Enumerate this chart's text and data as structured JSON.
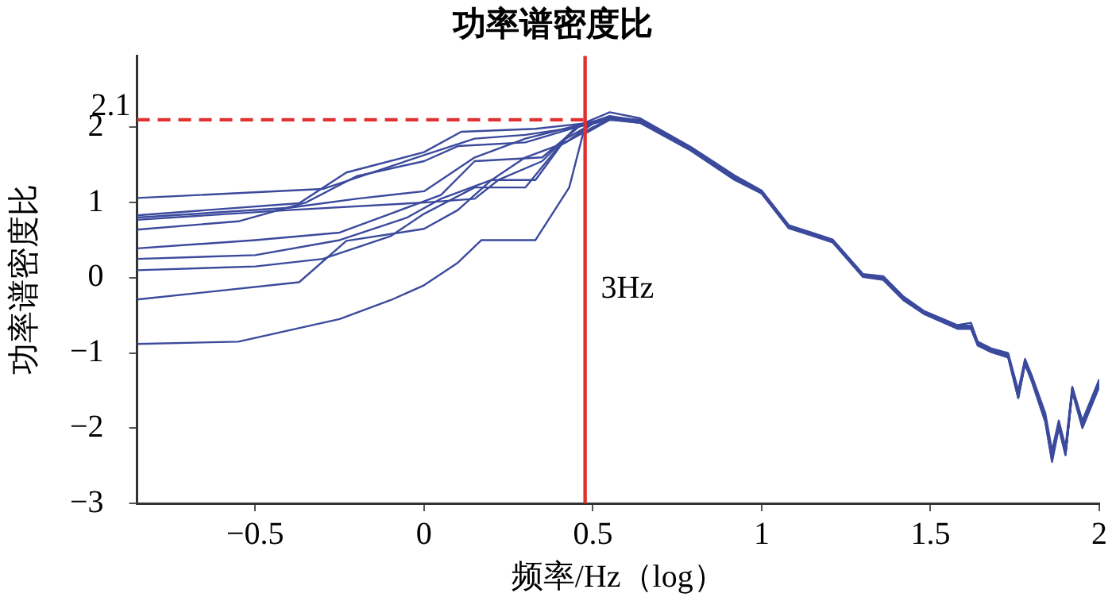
{
  "chart_data": {
    "type": "line",
    "title": "功率谱密度比",
    "xlabel": "频率/Hz（log）",
    "ylabel": "功率谱密度比",
    "xlim": [
      -0.85,
      2
    ],
    "xticks": [
      -0.5,
      0,
      0.5,
      1,
      1.5,
      2
    ],
    "ylim": [
      -3,
      2.95
    ],
    "yticks": [
      -3,
      -2,
      -1,
      0,
      1,
      2
    ],
    "grid": false,
    "legend": false,
    "marker": "none",
    "line_style": "solid",
    "series": [
      {
        "color": "#3b4a9c",
        "x": [
          -0.85,
          -0.3,
          0,
          0.15,
          0.3,
          0.45,
          0.55,
          0.64,
          0.79,
          0.92,
          1.0,
          1.08,
          1.21,
          1.3,
          1.36,
          1.42,
          1.48,
          1.58,
          1.62,
          1.64,
          1.68,
          1.73,
          1.76,
          1.78,
          1.8,
          1.84,
          1.86,
          1.88,
          1.9,
          1.92,
          1.95,
          2.0
        ],
        "values": [
          1.06,
          1.18,
          1.63,
          1.85,
          1.9,
          2.0,
          2.15,
          2.09,
          1.71,
          1.33,
          1.14,
          0.68,
          0.49,
          0.03,
          0.0,
          -0.27,
          -0.46,
          -0.65,
          -0.65,
          -0.88,
          -0.96,
          -1.03,
          -1.57,
          -1.11,
          -1.34,
          -1.87,
          -2.41,
          -1.95,
          -2.33,
          -1.49,
          -1.95,
          -1.41
        ]
      },
      {
        "color": "#3b4a9c",
        "x": [
          -0.85,
          -0.37,
          -0.23,
          0,
          0.11,
          0.33,
          0.47,
          0.55,
          0.64,
          0.79,
          0.92,
          1.0,
          1.08,
          1.21,
          1.3,
          1.36,
          1.42,
          1.48,
          1.58,
          1.62,
          1.64,
          1.68,
          1.73,
          1.76,
          1.78,
          1.8,
          1.84,
          1.86,
          1.88,
          1.9,
          1.92,
          1.95,
          2.0
        ],
        "values": [
          0.83,
          0.99,
          1.4,
          1.67,
          1.94,
          1.98,
          2.05,
          2.2,
          2.12,
          1.74,
          1.36,
          1.16,
          0.7,
          0.51,
          0.05,
          0.02,
          -0.25,
          -0.44,
          -0.63,
          -0.6,
          -0.85,
          -0.94,
          -1.0,
          -1.5,
          -1.08,
          -1.3,
          -1.8,
          -2.3,
          -1.9,
          -2.25,
          -1.45,
          -1.9,
          -1.35
        ]
      },
      {
        "color": "#3b4a9c",
        "x": [
          -0.85,
          -0.4,
          0,
          0.15,
          0.22,
          0.35,
          0.45,
          0.55,
          0.64,
          0.79,
          0.92,
          1.0,
          1.08,
          1.21,
          1.3,
          1.36,
          1.42,
          1.48,
          1.58,
          1.62,
          1.64,
          1.68,
          1.73,
          1.76,
          1.78,
          1.8,
          1.84,
          1.86,
          1.88,
          1.9,
          1.92,
          1.95,
          2.0
        ],
        "values": [
          0.77,
          0.9,
          1.0,
          1.05,
          1.3,
          1.55,
          2.0,
          2.1,
          2.06,
          1.69,
          1.3,
          1.12,
          0.66,
          0.47,
          0.01,
          -0.03,
          -0.3,
          -0.48,
          -0.68,
          -0.68,
          -0.9,
          -0.99,
          -1.06,
          -1.6,
          -1.15,
          -1.38,
          -1.92,
          -2.45,
          -2.0,
          -2.36,
          -1.52,
          -2.0,
          -1.45
        ]
      },
      {
        "color": "#3b4a9c",
        "x": [
          -0.85,
          -0.55,
          -0.35,
          -0.2,
          0,
          0.1,
          0.3,
          0.45,
          0.55,
          0.64,
          0.79,
          0.92,
          1.0,
          1.08,
          1.21,
          1.3,
          1.36,
          1.42,
          1.48,
          1.58,
          1.62,
          1.64,
          1.68,
          1.73,
          1.76,
          1.78,
          1.8,
          1.84,
          1.86,
          1.88,
          1.9,
          1.92,
          1.95,
          2.0
        ],
        "values": [
          0.64,
          0.75,
          1.0,
          1.35,
          1.55,
          1.75,
          1.8,
          2.0,
          2.13,
          2.1,
          1.72,
          1.34,
          1.15,
          0.69,
          0.5,
          0.04,
          0.01,
          -0.26,
          -0.45,
          -0.64,
          -0.64,
          -0.87,
          -0.95,
          -1.02,
          -1.55,
          -1.1,
          -1.33,
          -1.85,
          -2.38,
          -1.93,
          -2.3,
          -1.47,
          -1.93,
          -1.4
        ]
      },
      {
        "color": "#3b4a9c",
        "x": [
          -0.85,
          -0.5,
          -0.25,
          -0.1,
          0.05,
          0.15,
          0.35,
          0.47,
          0.55,
          0.64,
          0.79,
          0.92,
          1.0,
          1.08,
          1.21,
          1.3,
          1.36,
          1.42,
          1.48,
          1.58,
          1.62,
          1.64,
          1.68,
          1.73,
          1.76,
          1.78,
          1.8,
          1.84,
          1.86,
          1.88,
          1.9,
          1.92,
          1.95,
          2.0
        ],
        "values": [
          0.39,
          0.5,
          0.6,
          0.85,
          1.1,
          1.55,
          1.6,
          2.05,
          2.12,
          2.07,
          1.7,
          1.32,
          1.13,
          0.67,
          0.48,
          0.02,
          -0.01,
          -0.28,
          -0.47,
          -0.66,
          -0.66,
          -0.89,
          -0.97,
          -1.04,
          -1.58,
          -1.12,
          -1.35,
          -1.88,
          -2.4,
          -1.96,
          -2.32,
          -1.5,
          -1.96,
          -1.42
        ]
      },
      {
        "color": "#3b4a9c",
        "x": [
          -0.85,
          -0.5,
          -0.25,
          -0.05,
          0.05,
          0.2,
          0.3,
          0.42,
          0.5,
          0.55,
          0.64,
          0.79,
          0.92,
          1.0,
          1.08,
          1.21,
          1.3,
          1.36,
          1.42,
          1.48,
          1.58,
          1.62,
          1.64,
          1.68,
          1.73,
          1.76,
          1.78,
          1.8,
          1.84,
          1.86,
          1.88,
          1.9,
          1.92,
          1.95,
          2.0
        ],
        "values": [
          0.25,
          0.3,
          0.5,
          0.8,
          1.05,
          1.3,
          1.6,
          1.8,
          2.05,
          2.14,
          2.08,
          1.71,
          1.33,
          1.14,
          0.68,
          0.49,
          0.03,
          0.0,
          -0.27,
          -0.46,
          -0.65,
          -0.65,
          -0.88,
          -0.96,
          -1.03,
          -1.57,
          -1.11,
          -1.34,
          -1.87,
          -2.41,
          -1.95,
          -2.33,
          -1.49,
          -1.95,
          -1.41
        ]
      },
      {
        "color": "#3b4a9c",
        "x": [
          -0.85,
          -0.5,
          -0.3,
          -0.1,
          0,
          0.15,
          0.3,
          0.4,
          0.5,
          0.55,
          0.64,
          0.79,
          0.92,
          1.0,
          1.08,
          1.21,
          1.3,
          1.36,
          1.42,
          1.48,
          1.58,
          1.62,
          1.64,
          1.68,
          1.73,
          1.76,
          1.78,
          1.8,
          1.84,
          1.86,
          1.88,
          1.9,
          1.92,
          1.95,
          2.0
        ],
        "values": [
          0.1,
          0.15,
          0.25,
          0.55,
          0.85,
          1.2,
          1.2,
          1.75,
          2.0,
          2.11,
          2.06,
          1.7,
          1.31,
          1.12,
          0.66,
          0.48,
          0.02,
          -0.02,
          -0.29,
          -0.47,
          -0.67,
          -0.67,
          -0.9,
          -0.98,
          -1.05,
          -1.6,
          -1.14,
          -1.36,
          -1.9,
          -2.43,
          -1.98,
          -2.35,
          -1.51,
          -1.98,
          -1.44
        ]
      },
      {
        "color": "#3b4a9c",
        "x": [
          -0.85,
          -0.37,
          -0.23,
          0,
          0.1,
          0.2,
          0.33,
          0.42,
          0.5,
          0.55,
          0.64,
          0.79,
          0.92,
          1.0,
          1.08,
          1.21,
          1.3,
          1.36,
          1.42,
          1.48,
          1.58,
          1.62,
          1.64,
          1.68,
          1.73,
          1.76,
          1.78,
          1.8,
          1.84,
          1.86,
          1.88,
          1.9,
          1.92,
          1.95,
          2.0
        ],
        "values": [
          -0.29,
          -0.06,
          0.49,
          0.65,
          0.9,
          1.3,
          1.3,
          1.85,
          2.05,
          2.13,
          2.09,
          1.72,
          1.34,
          1.15,
          0.69,
          0.5,
          0.04,
          0.01,
          -0.26,
          -0.45,
          -0.64,
          -0.64,
          -0.87,
          -0.95,
          -1.02,
          -1.56,
          -1.1,
          -1.33,
          -1.86,
          -2.39,
          -1.94,
          -2.31,
          -1.48,
          -1.94,
          -1.4
        ]
      },
      {
        "color": "#3b4a9c",
        "x": [
          -0.85,
          -0.55,
          -0.25,
          -0.1,
          0,
          0.1,
          0.17,
          0.33,
          0.43,
          0.47,
          0.55,
          0.64,
          0.79,
          0.92,
          1.0,
          1.08,
          1.21,
          1.3,
          1.36,
          1.42,
          1.48,
          1.58,
          1.62,
          1.64,
          1.68,
          1.73,
          1.76,
          1.78,
          1.8,
          1.84,
          1.86,
          1.88,
          1.9,
          1.92,
          1.95,
          2.0
        ],
        "values": [
          -0.88,
          -0.85,
          -0.55,
          -0.3,
          -0.1,
          0.2,
          0.5,
          0.5,
          1.2,
          1.9,
          2.1,
          2.08,
          1.71,
          1.33,
          1.14,
          0.68,
          0.49,
          0.03,
          0.0,
          -0.27,
          -0.46,
          -0.65,
          -0.65,
          -0.88,
          -0.96,
          -1.03,
          -1.57,
          -1.11,
          -1.34,
          -1.87,
          -2.41,
          -1.95,
          -2.33,
          -1.49,
          -1.95,
          -1.41
        ]
      },
      {
        "color": "#3b4a9c",
        "x": [
          -0.85,
          -0.4,
          -0.2,
          0,
          0.15,
          0.3,
          0.45,
          0.55,
          0.64,
          0.79,
          0.92,
          1.0,
          1.08,
          1.21,
          1.3,
          1.36,
          1.42,
          1.48,
          1.58,
          1.62,
          1.64,
          1.68,
          1.73,
          1.76,
          1.78,
          1.8,
          1.84,
          1.86,
          1.88,
          1.9,
          1.92,
          1.95,
          2.0
        ],
        "values": [
          0.8,
          0.93,
          1.05,
          1.15,
          1.6,
          1.85,
          2.02,
          2.12,
          2.07,
          1.7,
          1.32,
          1.13,
          0.67,
          0.48,
          0.02,
          -0.01,
          -0.28,
          -0.47,
          -0.66,
          -0.66,
          -0.89,
          -0.97,
          -1.04,
          -1.58,
          -1.12,
          -1.35,
          -1.88,
          -2.4,
          -1.96,
          -2.32,
          -1.5,
          -1.96,
          -1.42
        ]
      },
      {
        "color": "#e03030",
        "line_style": "dashed",
        "x": [
          -0.85,
          0.477
        ],
        "values": [
          2.1,
          2.1
        ]
      }
    ],
    "ref_lines": [
      {
        "axis": "x",
        "value": 0.477,
        "color": "#e03030",
        "line_style": "solid"
      }
    ],
    "annotations": [
      {
        "text": "2.1",
        "x": -0.85,
        "y": 2.1
      },
      {
        "text": "3Hz",
        "x": 0.477,
        "y": -0.15
      }
    ]
  }
}
